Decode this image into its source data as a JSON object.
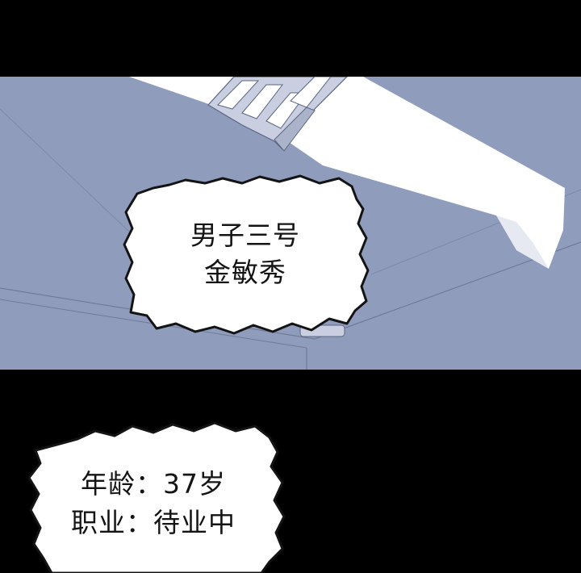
{
  "bubble_top": {
    "line1": "男子三号",
    "line2": "金敏秀"
  },
  "bubble_bottom": {
    "line1": "年龄：37岁",
    "line2": "职业：待业中"
  },
  "colors": {
    "background": "#000000",
    "ceiling": "#8f9cbb",
    "light_beam": "#ffffff",
    "bubble_fill": "#ffffff",
    "text": "#141414"
  }
}
